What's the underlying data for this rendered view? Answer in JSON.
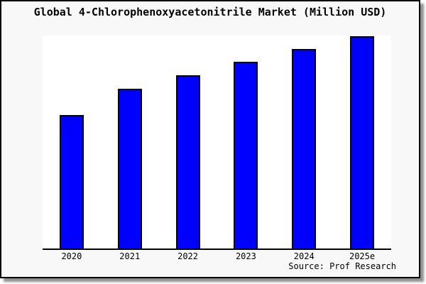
{
  "colors": {
    "bar_fill": "#0000fe",
    "bar_border": "#000000",
    "card_background": "#f8f8f8",
    "plot_background": "#ffffff",
    "axis": "#000000",
    "frame_border": "#000000",
    "shadow": "#8f8f8f",
    "text": "#000000"
  },
  "chart_data": {
    "type": "bar",
    "title": "Global 4-Chlorophenoxyacetonitrile Market (Million USD)",
    "categories": [
      "2020",
      "2021",
      "2022",
      "2023",
      "2024",
      "2025e"
    ],
    "values": [
      62.7,
      75.0,
      81.3,
      87.7,
      93.7,
      99.7
    ],
    "values_note": "No y-axis scale is shown in the image; values are relative bar heights estimated from pixels (tallest bar 2025e ~= 100).",
    "xlabel": "",
    "ylabel": "",
    "ylim": [
      0,
      100
    ],
    "grid": false,
    "legend": null,
    "y_axis_labels_visible": false,
    "source": "Source: Prof Research"
  }
}
